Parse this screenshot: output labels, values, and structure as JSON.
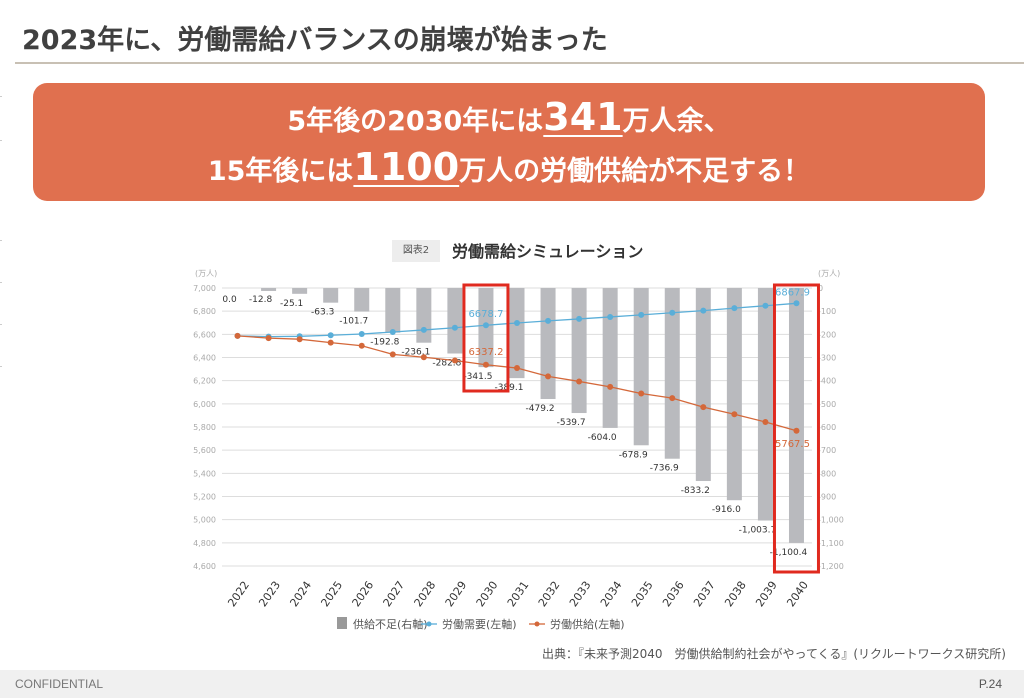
{
  "page": {
    "title": "2023年に、労働需給バランスの崩壊が始まった",
    "banner": {
      "line1_pre": "5年後の2030年には",
      "line1_big": "341",
      "line1_post": "万人余、",
      "line2_pre": "15年後には",
      "line2_big": "1100",
      "line2_post": "万人の労働供給が不足する！"
    },
    "chart_badge": "図表2",
    "chart_heading": "労働需給シミュレーション",
    "source": "出典：『未来予測2040　労働供給制約社会がやってくる』(リクルートワークス研究所)",
    "footer_left": "CONFIDENTIAL",
    "footer_right": "P.24"
  },
  "colors": {
    "banner": "#e0704f",
    "bar": "#b9babe",
    "demand": "#5aaed8",
    "supply": "#d4683a",
    "highlight": "#e02a1f",
    "grid": "#dddddd"
  },
  "chart_data": {
    "type": "bar+line",
    "title": "労働需給シミュレーション",
    "categories": [
      "2022",
      "2023",
      "2024",
      "2025",
      "2026",
      "2027",
      "2028",
      "2029",
      "2030",
      "2031",
      "2032",
      "2033",
      "2034",
      "2035",
      "2036",
      "2037",
      "2038",
      "2039",
      "2040"
    ],
    "left_axis": {
      "label": "(万人)",
      "range": [
        4600,
        7000
      ],
      "ticks": [
        "7,000",
        "6,800",
        "6,600",
        "6,400",
        "6,200",
        "6,000",
        "5,800",
        "5,600",
        "5,400",
        "5,200",
        "5,000",
        "4,800",
        "4,600"
      ]
    },
    "right_axis": {
      "label": "(万人)",
      "range": [
        -1200,
        0
      ],
      "ticks": [
        "0",
        "-100",
        "-200",
        "-300",
        "-400",
        "-500",
        "-600",
        "-700",
        "-800",
        "-900",
        "-1,000",
        "-1,100",
        "-1,200"
      ]
    },
    "grid": true,
    "legend_position": "bottom",
    "series": [
      {
        "name": "供給不足(右軸)",
        "kind": "bar",
        "axis": "right",
        "values": [
          0.0,
          -12.8,
          -25.1,
          -63.3,
          -101.7,
          -192.8,
          -236.1,
          -282.8,
          -341.5,
          -389.1,
          -479.2,
          -539.7,
          -604.0,
          -678.9,
          -736.9,
          -833.2,
          -916.0,
          -1003.7,
          -1100.4
        ],
        "labels": [
          "0.0",
          "-12.8",
          "-25.1",
          "-63.3",
          "-101.7",
          "-192.8",
          "-236.1",
          "-282.8",
          "-341.5",
          "-389.1",
          "-479.2",
          "-539.7",
          "-604.0",
          "-678.9",
          "-736.9",
          "-833.2",
          "-916.0",
          "-1,003.7",
          "-1,100.4"
        ]
      },
      {
        "name": "労働需要(左軸)",
        "kind": "line",
        "axis": "left",
        "values": [
          6587,
          6580,
          6583,
          6592,
          6603,
          6620,
          6638,
          6657,
          6678.7,
          6698,
          6716,
          6733,
          6750,
          6768,
          6786,
          6805,
          6826,
          6847,
          6867.9
        ],
        "point_labels": {
          "8": "6678.7",
          "18": "6867.9"
        }
      },
      {
        "name": "労働供給(左軸)",
        "kind": "line",
        "axis": "left",
        "values": [
          6587,
          6567.2,
          6557.9,
          6528.7,
          6501.3,
          6427.2,
          6401.9,
          6374.2,
          6337.2,
          6308.9,
          6236.8,
          6193.3,
          6146,
          6089.1,
          6049.1,
          5971.8,
          5910,
          5843.3,
          5767.5
        ],
        "point_labels": {
          "8": "6337.2",
          "18": "5767.5"
        }
      }
    ],
    "highlights": [
      "2030",
      "2040"
    ]
  }
}
